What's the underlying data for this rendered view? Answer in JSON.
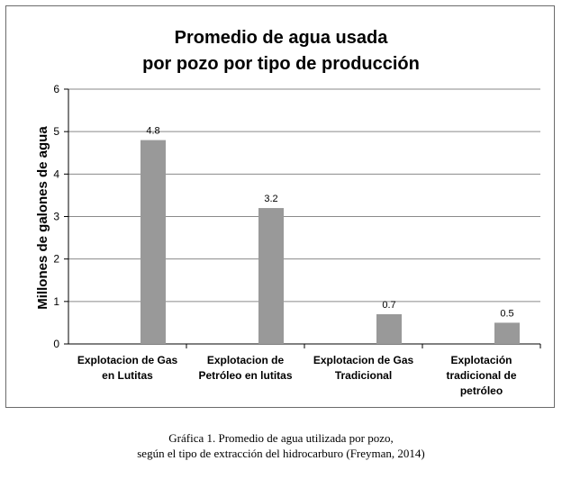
{
  "chart_data": {
    "type": "bar",
    "title": [
      "Promedio de agua usada",
      "por pozo por tipo de producción"
    ],
    "ylabel": "Millones de galones de agua",
    "xlabel": "",
    "ylim": [
      0,
      6
    ],
    "yticks": [
      0,
      1,
      2,
      3,
      4,
      5,
      6
    ],
    "grid": true,
    "legend": "none",
    "categories": [
      [
        "Explotacion de  Gas",
        "en Lutitas"
      ],
      [
        "Explotacion de",
        "Petróleo en lutitas"
      ],
      [
        "Explotacion de Gas",
        "Tradicional"
      ],
      [
        "Explotación",
        "tradicional de",
        "petróleo"
      ]
    ],
    "values": [
      4.8,
      3.2,
      0.7,
      0.5
    ],
    "data_labels": [
      "4.8",
      "3.2",
      "0.7",
      "0.5"
    ],
    "bar_color": "#999999"
  },
  "caption": {
    "line1": "Gráfica 1. Promedio de agua utilizada por pozo,",
    "line2": "según el tipo de extracción del hidrocarburo (Freyman, 2014)"
  }
}
